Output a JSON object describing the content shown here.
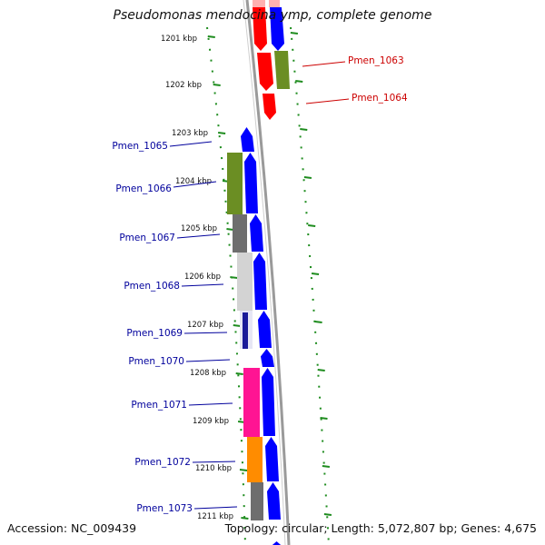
{
  "title": "Pseudomonas mendocina ymp, complete genome",
  "footer": {
    "accession_label": "Accession:",
    "accession": "NC_009439",
    "topology_label": "Topology:",
    "topology": "circular",
    "length_label": "Length:",
    "length": "5,072,807 bp",
    "genes_label": "Genes:",
    "genes": "4,675"
  },
  "kbp_ticks": [
    "1201 kbp",
    "1202 kbp",
    "1203 kbp",
    "1204 kbp",
    "1205 kbp",
    "1206 kbp",
    "1207 kbp",
    "1208 kbp",
    "1209 kbp",
    "1210 kbp",
    "1211 kbp"
  ],
  "genes_forward": [
    "Pmen_1063",
    "Pmen_1064"
  ],
  "genes_reverse": [
    "Pmen_1065",
    "Pmen_1066",
    "Pmen_1067",
    "Pmen_1068",
    "Pmen_1069",
    "Pmen_1070",
    "Pmen_1071",
    "Pmen_1072",
    "Pmen_1073"
  ],
  "colors": {
    "forward_label": "#cc0000",
    "reverse_label": "#00009c",
    "backbone": "#9a9a9a",
    "ticks": "#1e8c1e",
    "red": "#ff0000",
    "blue": "#0000ff",
    "olive": "#6b8e23",
    "gray": "#6e6e6e",
    "lightgray": "#d3d3d3",
    "navy": "#1a1a99",
    "pink": "#ff1493",
    "orange": "#ff8c00"
  }
}
